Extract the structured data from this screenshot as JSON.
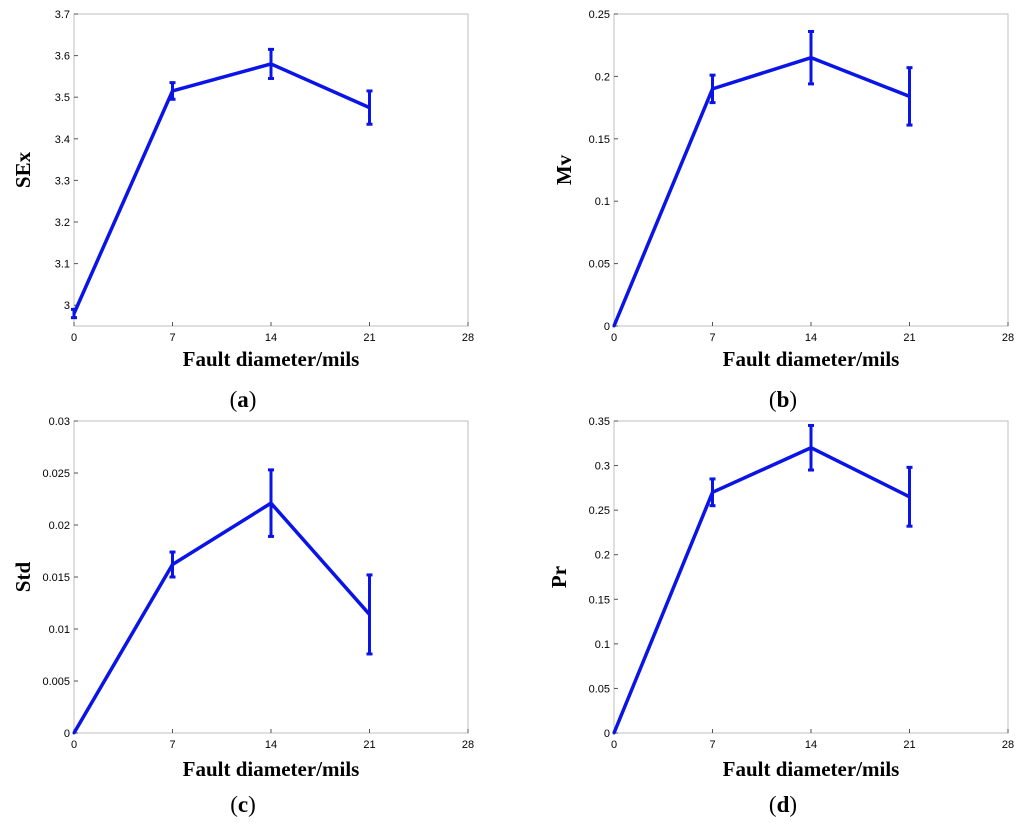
{
  "chart_data": [
    {
      "id": "a",
      "type": "line",
      "panel_label": "a",
      "xlabel": "Fault diameter/mils",
      "ylabel": "SEx",
      "xlim": [
        0,
        28
      ],
      "ylim": [
        2.95,
        3.7
      ],
      "xticks": [
        0,
        7,
        14,
        21,
        28
      ],
      "yticks": [
        3,
        3.1,
        3.2,
        3.3,
        3.4,
        3.5,
        3.6,
        3.7
      ],
      "ytick_labels": [
        "3",
        "3.1",
        "3.2",
        "3.3",
        "3.4",
        "3.5",
        "3.6",
        "3.7"
      ],
      "color": "#0a14e6",
      "series": [
        {
          "name": "SEx",
          "x": [
            0,
            7,
            14,
            21
          ],
          "y": [
            2.98,
            3.515,
            3.58,
            3.475
          ],
          "err": [
            0.01,
            0.02,
            0.035,
            0.04
          ]
        }
      ]
    },
    {
      "id": "b",
      "type": "line",
      "panel_label": "b",
      "xlabel": "Fault diameter/mils",
      "ylabel": "Mv",
      "xlim": [
        0,
        28
      ],
      "ylim": [
        0,
        0.25
      ],
      "xticks": [
        0,
        7,
        14,
        21,
        28
      ],
      "yticks": [
        0,
        0.05,
        0.1,
        0.15,
        0.2,
        0.25
      ],
      "ytick_labels": [
        "0",
        "0.05",
        "0.1",
        "0.15",
        "0.2",
        "0.25"
      ],
      "color": "#0a14e6",
      "series": [
        {
          "name": "Mv",
          "x": [
            0,
            7,
            14,
            21
          ],
          "y": [
            0,
            0.19,
            0.215,
            0.184
          ],
          "err": [
            0,
            0.011,
            0.021,
            0.023
          ]
        }
      ]
    },
    {
      "id": "c",
      "type": "line",
      "panel_label": "c",
      "xlabel": "Fault diameter/mils",
      "ylabel": "Std",
      "xlim": [
        0,
        28
      ],
      "ylim": [
        0,
        0.03
      ],
      "xticks": [
        0,
        7,
        14,
        21,
        28
      ],
      "yticks": [
        0,
        0.005,
        0.01,
        0.015,
        0.02,
        0.025,
        0.03
      ],
      "ytick_labels": [
        "0",
        "0.005",
        "0.01",
        "0.015",
        "0.02",
        "0.025",
        "0.03"
      ],
      "color": "#0a14e6",
      "series": [
        {
          "name": "Std",
          "x": [
            0,
            7,
            14,
            21
          ],
          "y": [
            0,
            0.0162,
            0.0221,
            0.0114
          ],
          "err": [
            0,
            0.0012,
            0.0032,
            0.0038
          ]
        }
      ]
    },
    {
      "id": "d",
      "type": "line",
      "panel_label": "d",
      "xlabel": "Fault diameter/mils",
      "ylabel": "Pr",
      "xlim": [
        0,
        28
      ],
      "ylim": [
        0,
        0.35
      ],
      "xticks": [
        0,
        7,
        14,
        21,
        28
      ],
      "yticks": [
        0,
        0.05,
        0.1,
        0.15,
        0.2,
        0.25,
        0.3,
        0.35
      ],
      "ytick_labels": [
        "0",
        "0.05",
        "0.1",
        "0.15",
        "0.2",
        "0.25",
        "0.3",
        "0.35"
      ],
      "color": "#0a14e6",
      "series": [
        {
          "name": "Pr",
          "x": [
            0,
            7,
            14,
            21
          ],
          "y": [
            0,
            0.27,
            0.32,
            0.265
          ],
          "err": [
            0,
            0.015,
            0.025,
            0.033
          ]
        }
      ]
    }
  ]
}
